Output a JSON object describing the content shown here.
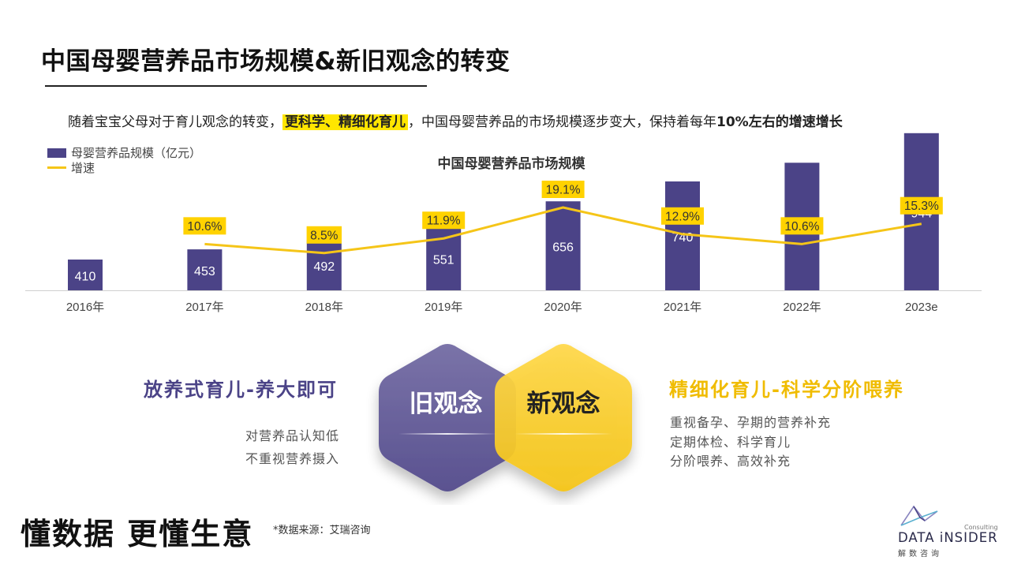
{
  "title": "中国母婴营养品市场规模&新旧观念的转变",
  "subtitle": {
    "part1": "随着宝宝父母对于育儿观念的转变，",
    "highlight": "更科学、精细化育儿",
    "part2": "，中国母婴营养品的市场规模逐步变大，保持着每年",
    "bold": "10%左右的增速增长"
  },
  "legend": {
    "bar": "母婴营养品规模（亿元）",
    "line": "增速"
  },
  "chart_data": {
    "type": "bar",
    "title": "中国母婴营养品市场规模",
    "categories": [
      "2016年",
      "2017年",
      "2018年",
      "2019年",
      "2020年",
      "2021年",
      "2022年",
      "2023e"
    ],
    "series": [
      {
        "name": "母婴营养品规模（亿元）",
        "type": "bar",
        "values": [
          410,
          453,
          492,
          551,
          656,
          740,
          819,
          944
        ]
      },
      {
        "name": "增速",
        "type": "line",
        "values": [
          null,
          10.6,
          8.5,
          11.9,
          19.1,
          12.9,
          10.6,
          15.3
        ],
        "labels": [
          "",
          "10.6%",
          "8.5%",
          "11.9%",
          "19.1%",
          "12.9%",
          "10.6%",
          "15.3%"
        ]
      }
    ],
    "grid": false,
    "legend_position": "top-left",
    "colors": {
      "bar": "#4b4387",
      "line": "#f5c518",
      "label_bg": "#ffd200"
    }
  },
  "concepts": {
    "old": {
      "label": "旧观念",
      "heading": "放养式育儿-养大即可",
      "points": [
        "对营养品认知低",
        "不重视营养摄入"
      ]
    },
    "new": {
      "label": "新观念",
      "heading": "精细化育儿-科学分阶喂养",
      "points": [
        "重视备孕、孕期的营养补充",
        "定期体检、科学育儿",
        "分阶喂养、高效补充"
      ]
    }
  },
  "footer": {
    "slogan": "懂数据 更懂生意",
    "source": "*数据来源：艾瑞咨询"
  },
  "logo": {
    "name": "DATA iNSIDER",
    "consulting": "Consulting",
    "cn": "解数咨询"
  },
  "colors": {
    "purple": "#4b4387",
    "yellow": "#f5c518",
    "highlight": "#ffe600"
  }
}
